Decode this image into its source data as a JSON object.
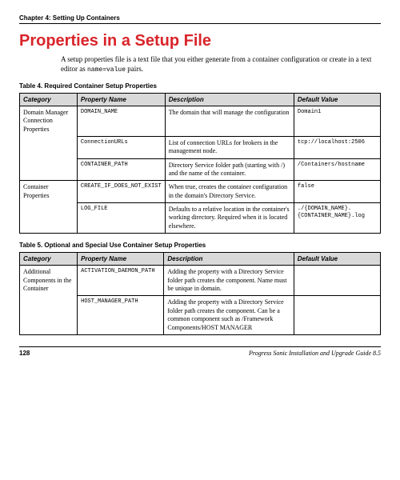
{
  "chapter": "Chapter 4: Setting Up Containers",
  "title": "Properties in a Setup File",
  "intro_a": "A setup properties file is a text file that you either generate from a container configuration or create in a text editor as ",
  "intro_code": "name=value",
  "intro_b": " pairs.",
  "table4": {
    "caption": "Table 4. Required Container Setup Properties",
    "headers": [
      "Category",
      "Property Name",
      "Description",
      "Default Value"
    ],
    "rows": [
      [
        "Domain Manager Connection Properties",
        "DOMAIN_NAME",
        "The domain that will manage the configuration",
        "Domain1"
      ],
      [
        "",
        "ConnectionURLs",
        "List of connection URLs for brokers in the management node.",
        "tcp://localhost:2506"
      ],
      [
        "",
        "CONTAINER_PATH",
        "Directory Service folder path (starting with /) and the name of the container.",
        "/Containers/hostname"
      ],
      [
        "Container Properties",
        "CREATE_IF_DOES_NOT_EXIST",
        "When true, creates the container configuration in the domain's Directory Service.",
        "false"
      ],
      [
        "",
        "LOG_FILE",
        "Defaults to a relative location in the container's working directory. Required when it is located elsewhere.",
        "./{DOMAIN_NAME}.{CONTAINER_NAME}.log"
      ]
    ]
  },
  "table5": {
    "caption": "Table 5. Optional and Special Use Container Setup Properties",
    "headers": [
      "Category",
      "Property Name",
      "Description",
      "Default Value"
    ],
    "rows": [
      [
        "Additional Components in the Container",
        "ACTIVATION_DAEMON_PATH",
        "Adding the property with a Directory Service folder path creates the component.\nName must be unique in domain.",
        ""
      ],
      [
        "",
        "HOST_MANAGER_PATH",
        "Adding the property with a Directory Service folder path creates the component. Can be a common component such as\n/Framework Components/HOST MANAGER",
        ""
      ]
    ]
  },
  "footer": {
    "page": "128",
    "doc": "Progress Sonic Installation and Upgrade Guide 8.5"
  }
}
